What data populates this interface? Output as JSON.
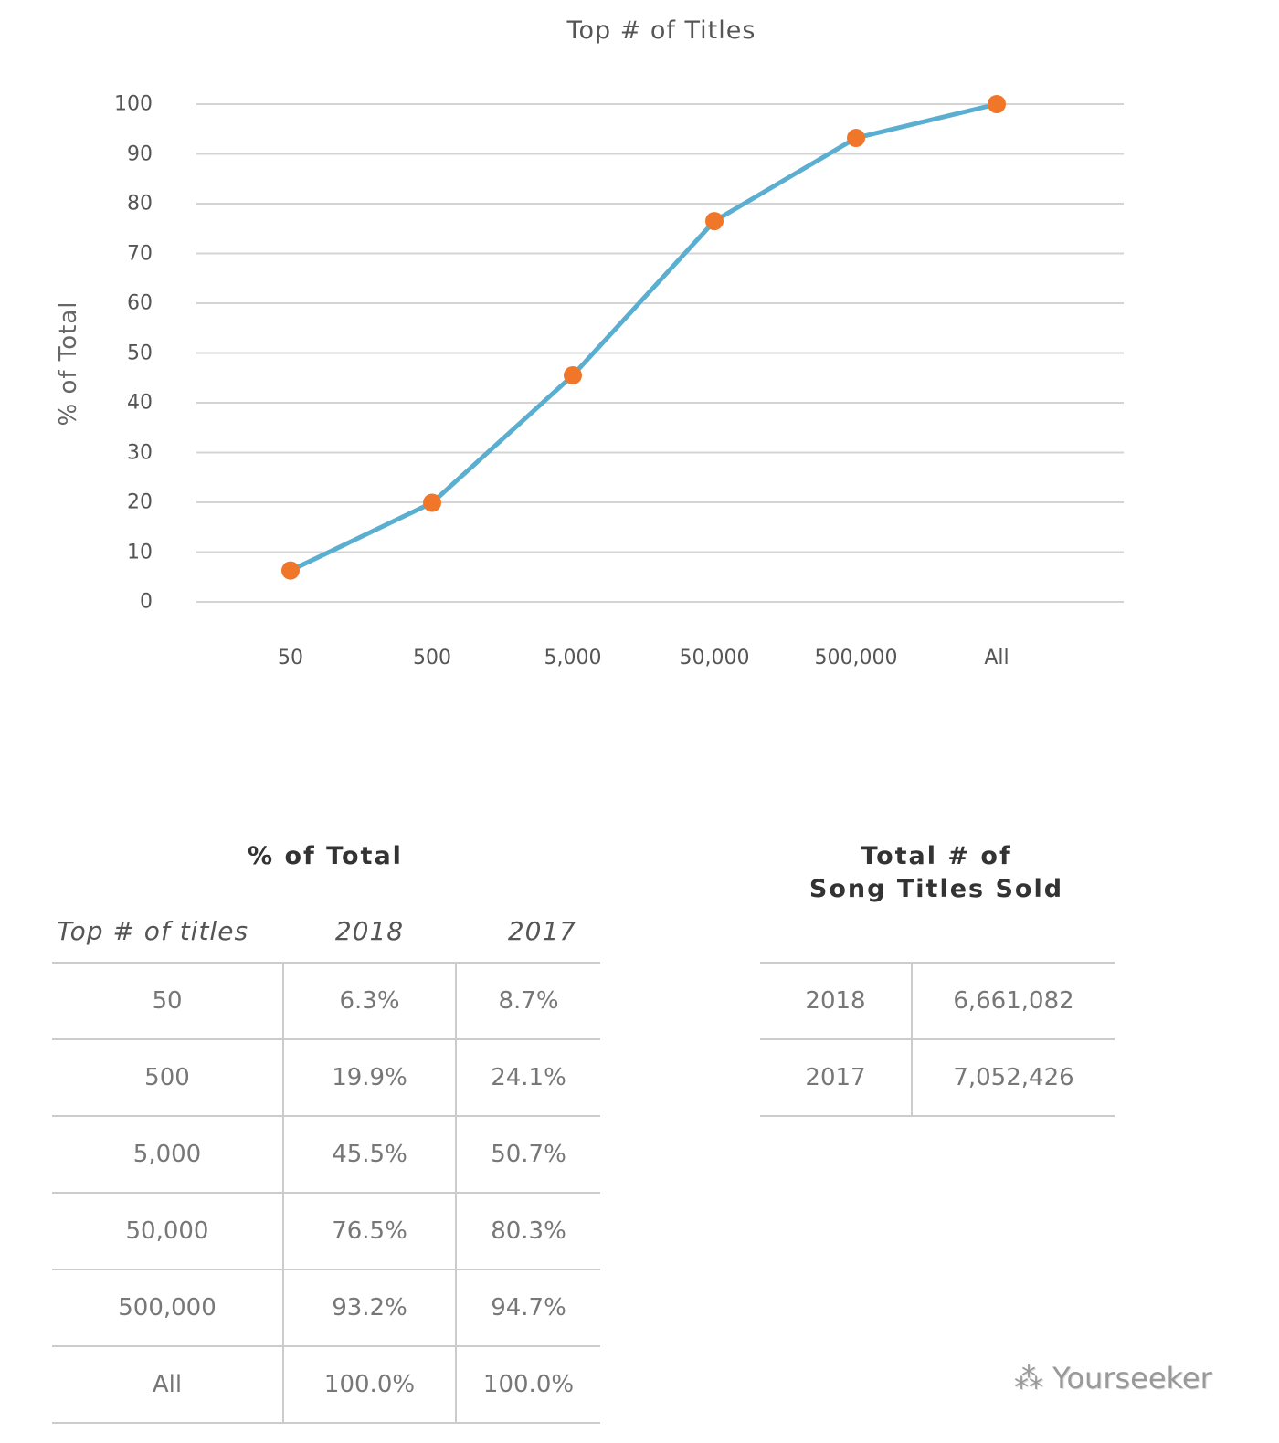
{
  "chart_data": {
    "type": "line",
    "title": "Top # of Titles",
    "ylabel": "% of Total",
    "xlabel": "",
    "categories": [
      "50",
      "500",
      "5,000",
      "50,000",
      "500,000",
      "All"
    ],
    "values": [
      6.3,
      19.9,
      45.5,
      76.5,
      93.2,
      100.0
    ],
    "ylim": [
      0,
      100
    ],
    "yticks": [
      "0",
      "10",
      "20",
      "30",
      "40",
      "50",
      "60",
      "70",
      "80",
      "90",
      "100"
    ],
    "grid": true,
    "line_color": "#5aaed0",
    "marker_color": "#f0762a"
  },
  "pct_table": {
    "title": "% of Total",
    "headers": [
      "Top # of titles",
      "2018",
      "2017"
    ],
    "rows": [
      [
        "50",
        "6.3%",
        "8.7%"
      ],
      [
        "500",
        "19.9%",
        "24.1%"
      ],
      [
        "5,000",
        "45.5%",
        "50.7%"
      ],
      [
        "50,000",
        "76.5%",
        "80.3%"
      ],
      [
        "500,000",
        "93.2%",
        "94.7%"
      ],
      [
        "All",
        "100.0%",
        "100.0%"
      ]
    ]
  },
  "total_table": {
    "title_line1": "Total # of",
    "title_line2": "Song Titles Sold",
    "rows": [
      [
        "2018",
        "6,661,082"
      ],
      [
        "2017",
        "7,052,426"
      ]
    ]
  },
  "watermark": "Yourseeker"
}
